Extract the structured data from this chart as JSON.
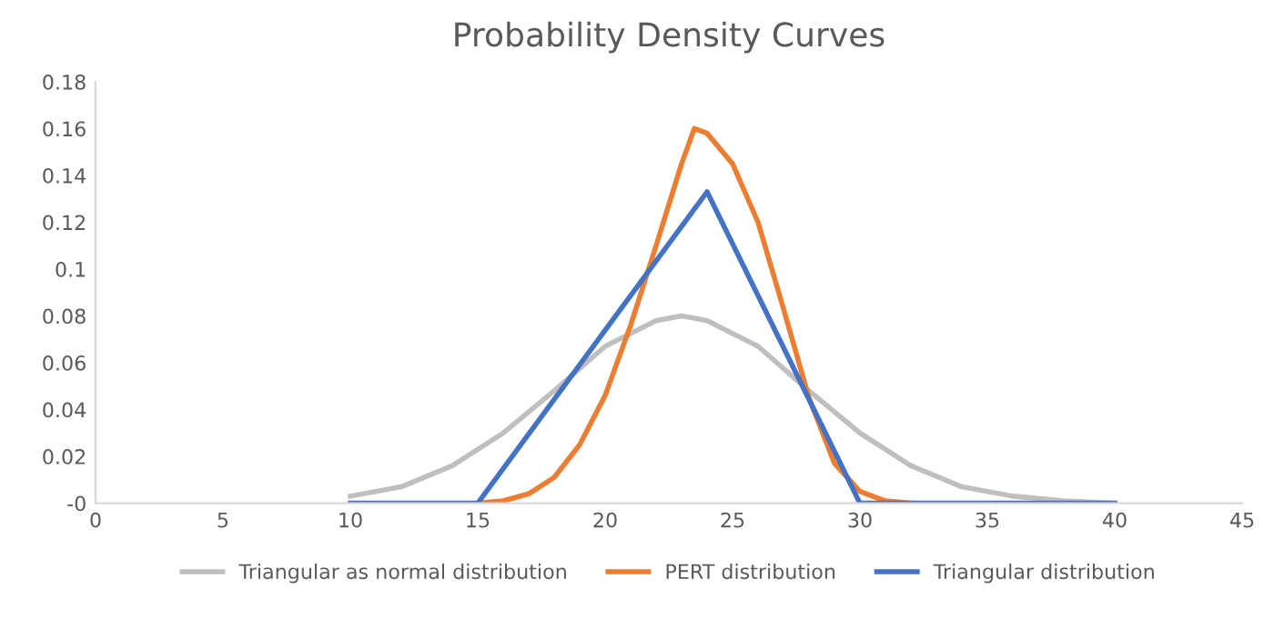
{
  "chart_data": {
    "type": "line",
    "title": "Probability Density Curves",
    "xlim": [
      0,
      45
    ],
    "xticks": [
      0,
      5,
      10,
      15,
      20,
      25,
      30,
      35,
      40,
      45
    ],
    "ylim": [
      0,
      0.18
    ],
    "yticks": [
      {
        "value": 0,
        "label": "-0"
      },
      0.02,
      0.04,
      0.06,
      0.08,
      0.1,
      0.12,
      0.14,
      0.16,
      0.18
    ],
    "grid": false,
    "legend": "bottom",
    "marker": "none",
    "line_style": "solid",
    "series": [
      {
        "name": "Triangular as normal distribution",
        "color": "#bfbfbf",
        "x": [
          10,
          12,
          14,
          16,
          18,
          20,
          22,
          23,
          24,
          26,
          28,
          30,
          32,
          34,
          36,
          38,
          40
        ],
        "values": [
          0.003,
          0.007,
          0.016,
          0.03,
          0.048,
          0.067,
          0.078,
          0.08,
          0.078,
          0.067,
          0.048,
          0.03,
          0.016,
          0.007,
          0.003,
          0.001,
          0
        ]
      },
      {
        "name": "PERT distribution",
        "color": "#ed7d31",
        "x": [
          15,
          16,
          17,
          18,
          19,
          20,
          21,
          22,
          23,
          23.5,
          24,
          25,
          26,
          27,
          28,
          29,
          30,
          31,
          32
        ],
        "values": [
          0,
          0.001,
          0.004,
          0.011,
          0.025,
          0.046,
          0.076,
          0.11,
          0.145,
          0.16,
          0.158,
          0.145,
          0.12,
          0.083,
          0.045,
          0.017,
          0.005,
          0.001,
          0
        ]
      },
      {
        "name": "Triangular distribution",
        "color": "#4472c4",
        "x": [
          10,
          15,
          24,
          30,
          40
        ],
        "values": [
          0,
          0,
          0.133,
          0,
          0
        ]
      }
    ]
  }
}
